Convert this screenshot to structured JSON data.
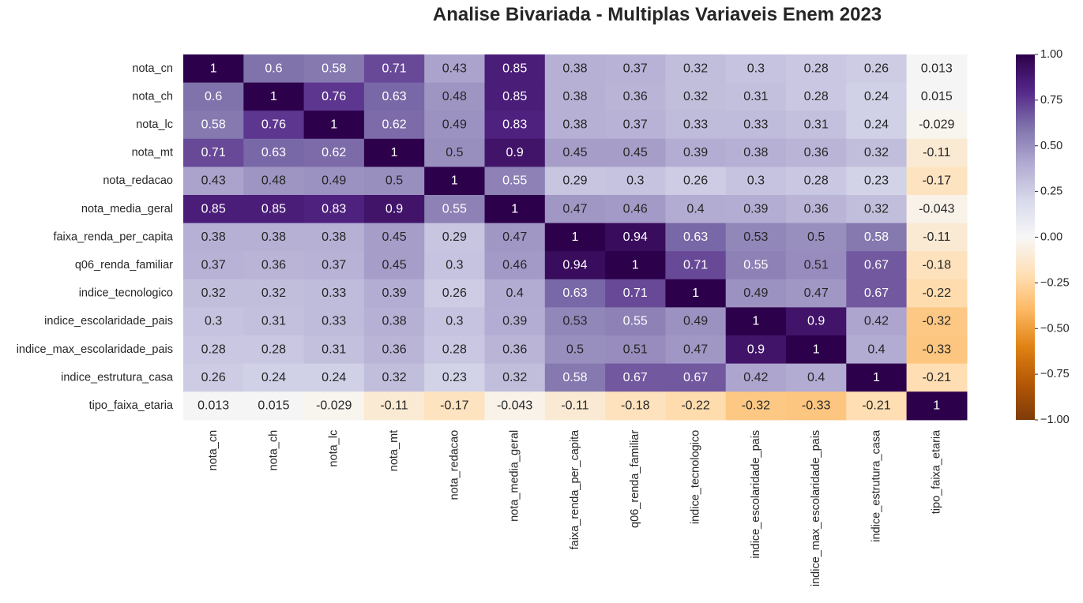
{
  "chart_data": {
    "type": "heatmap",
    "title": "Analise Bivariada - Multiplas Variaveis Enem 2023",
    "variables": [
      "nota_cn",
      "nota_ch",
      "nota_lc",
      "nota_mt",
      "nota_redacao",
      "nota_media_geral",
      "faixa_renda_per_capita",
      "q06_renda_familiar",
      "indice_tecnologico",
      "indice_escolaridade_pais",
      "indice_max_escolaridade_pais",
      "indice_estrutura_casa",
      "tipo_faixa_etaria"
    ],
    "matrix": [
      [
        1,
        0.6,
        0.58,
        0.71,
        0.43,
        0.85,
        0.38,
        0.37,
        0.32,
        0.3,
        0.28,
        0.26,
        0.013
      ],
      [
        0.6,
        1,
        0.76,
        0.63,
        0.48,
        0.85,
        0.38,
        0.36,
        0.32,
        0.31,
        0.28,
        0.24,
        0.015
      ],
      [
        0.58,
        0.76,
        1,
        0.62,
        0.49,
        0.83,
        0.38,
        0.37,
        0.33,
        0.33,
        0.31,
        0.24,
        -0.029
      ],
      [
        0.71,
        0.63,
        0.62,
        1,
        0.5,
        0.9,
        0.45,
        0.45,
        0.39,
        0.38,
        0.36,
        0.32,
        -0.11
      ],
      [
        0.43,
        0.48,
        0.49,
        0.5,
        1,
        0.55,
        0.29,
        0.3,
        0.26,
        0.3,
        0.28,
        0.23,
        -0.17
      ],
      [
        0.85,
        0.85,
        0.83,
        0.9,
        0.55,
        1,
        0.47,
        0.46,
        0.4,
        0.39,
        0.36,
        0.32,
        -0.043
      ],
      [
        0.38,
        0.38,
        0.38,
        0.45,
        0.29,
        0.47,
        1,
        0.94,
        0.63,
        0.53,
        0.5,
        0.58,
        -0.11
      ],
      [
        0.37,
        0.36,
        0.37,
        0.45,
        0.3,
        0.46,
        0.94,
        1,
        0.71,
        0.55,
        0.51,
        0.67,
        -0.18
      ],
      [
        0.32,
        0.32,
        0.33,
        0.39,
        0.26,
        0.4,
        0.63,
        0.71,
        1,
        0.49,
        0.47,
        0.67,
        -0.22
      ],
      [
        0.3,
        0.31,
        0.33,
        0.38,
        0.3,
        0.39,
        0.53,
        0.55,
        0.49,
        1,
        0.9,
        0.42,
        -0.32
      ],
      [
        0.28,
        0.28,
        0.31,
        0.36,
        0.28,
        0.36,
        0.5,
        0.51,
        0.47,
        0.9,
        1,
        0.4,
        -0.33
      ],
      [
        0.26,
        0.24,
        0.24,
        0.32,
        0.23,
        0.32,
        0.58,
        0.67,
        0.67,
        0.42,
        0.4,
        1,
        -0.21
      ],
      [
        0.013,
        0.015,
        -0.029,
        -0.11,
        -0.17,
        -0.043,
        -0.11,
        -0.18,
        -0.22,
        -0.32,
        -0.33,
        -0.21,
        1
      ]
    ],
    "colorbar": {
      "ticks": [
        1.0,
        0.75,
        0.5,
        0.25,
        0.0,
        -0.25,
        -0.5,
        -0.75,
        -1.0
      ],
      "tick_labels": [
        "1.00",
        "0.75",
        "0.50",
        "0.25",
        "0.00",
        "−0.25",
        "−0.50",
        "−0.75",
        "−1.00"
      ],
      "vmin": -1,
      "vmax": 1,
      "colormap": "PuOr",
      "colormap_stops": [
        "#7f3b08",
        "#b35806",
        "#e08214",
        "#fdb863",
        "#fee0b6",
        "#f7f7f7",
        "#d8daeb",
        "#b2abd2",
        "#8073ac",
        "#542788",
        "#2d004b"
      ]
    },
    "annotations": true,
    "grid": false
  }
}
